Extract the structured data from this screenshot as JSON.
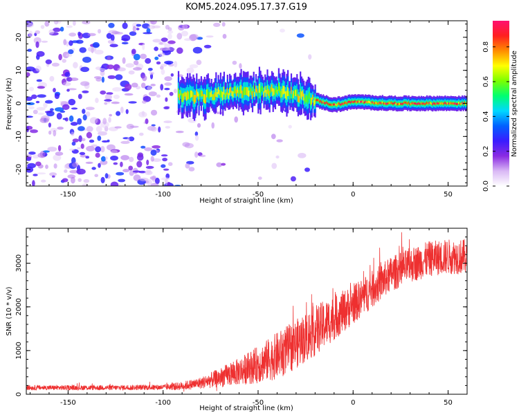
{
  "figure": {
    "title": "KOM5.2024.095.17.37.G19"
  },
  "chart_data": [
    {
      "type": "heatmap",
      "xlabel": "Height of straight line (km)",
      "ylabel": "Frequency (Hz)",
      "xlim": [
        -172,
        60
      ],
      "ylim": [
        -25,
        25
      ],
      "x_ticks": [
        -150,
        -100,
        -50,
        0,
        50
      ],
      "y_ticks": [
        -20,
        -10,
        0,
        10,
        20
      ],
      "colorbar": {
        "label": "Normalized spectral amplitude",
        "range": [
          0,
          0.95
        ],
        "ticks": [
          0.0,
          0.2,
          0.4,
          0.6,
          0.8
        ],
        "colors": [
          "#ffffff",
          "#d9b8f5",
          "#8a2be2",
          "#3a1cff",
          "#0060ff",
          "#00d8ff",
          "#00ff70",
          "#7cff00",
          "#ffff00",
          "#ff8c00",
          "#ff2020",
          "#ff1070"
        ]
      },
      "signal_band": {
        "description_x_range": [
          -92,
          60
        ],
        "center_frequency": [
          {
            "x": -92,
            "y": 2.5
          },
          {
            "x": -80,
            "y": 2.0
          },
          {
            "x": -70,
            "y": 3.0
          },
          {
            "x": -60,
            "y": 3.8
          },
          {
            "x": -50,
            "y": 3.5
          },
          {
            "x": -40,
            "y": 4.0
          },
          {
            "x": -30,
            "y": 2.5
          },
          {
            "x": -20,
            "y": 1.0
          },
          {
            "x": -10,
            "y": -0.5
          },
          {
            "x": 0,
            "y": 0.5
          },
          {
            "x": 20,
            "y": 0.0
          },
          {
            "x": 40,
            "y": 0.0
          },
          {
            "x": 60,
            "y": 0.0
          }
        ],
        "peak_amplitude": 0.9
      },
      "grid": false
    },
    {
      "type": "line",
      "xlabel": "Height of straight line (km)",
      "ylabel": "SNR (10 * v/v)",
      "xlim": [
        -172,
        60
      ],
      "ylim": [
        0,
        3800
      ],
      "x_ticks": [
        -150,
        -100,
        -50,
        0,
        50
      ],
      "y_ticks": [
        0,
        1000,
        2000,
        3000
      ],
      "series": [
        {
          "color": "#ee3030",
          "envelope_mean": [
            {
              "x": -172,
              "y": 150
            },
            {
              "x": -150,
              "y": 150
            },
            {
              "x": -125,
              "y": 150
            },
            {
              "x": -100,
              "y": 160
            },
            {
              "x": -90,
              "y": 190
            },
            {
              "x": -80,
              "y": 260
            },
            {
              "x": -70,
              "y": 380
            },
            {
              "x": -60,
              "y": 520
            },
            {
              "x": -50,
              "y": 680
            },
            {
              "x": -40,
              "y": 880
            },
            {
              "x": -30,
              "y": 1150
            },
            {
              "x": -20,
              "y": 1450
            },
            {
              "x": -10,
              "y": 1750
            },
            {
              "x": 0,
              "y": 2050
            },
            {
              "x": 10,
              "y": 2400
            },
            {
              "x": 20,
              "y": 2750
            },
            {
              "x": 30,
              "y": 2950
            },
            {
              "x": 40,
              "y": 3100
            },
            {
              "x": 50,
              "y": 3150
            },
            {
              "x": 60,
              "y": 3150
            }
          ],
          "envelope_spread": [
            {
              "x": -172,
              "y": 60
            },
            {
              "x": -100,
              "y": 70
            },
            {
              "x": -80,
              "y": 150
            },
            {
              "x": -60,
              "y": 350
            },
            {
              "x": -40,
              "y": 600
            },
            {
              "x": -20,
              "y": 650
            },
            {
              "x": 0,
              "y": 500
            },
            {
              "x": 20,
              "y": 450
            },
            {
              "x": 40,
              "y": 450
            },
            {
              "x": 60,
              "y": 450
            }
          ],
          "points_count": 2300
        }
      ],
      "grid": false
    }
  ]
}
